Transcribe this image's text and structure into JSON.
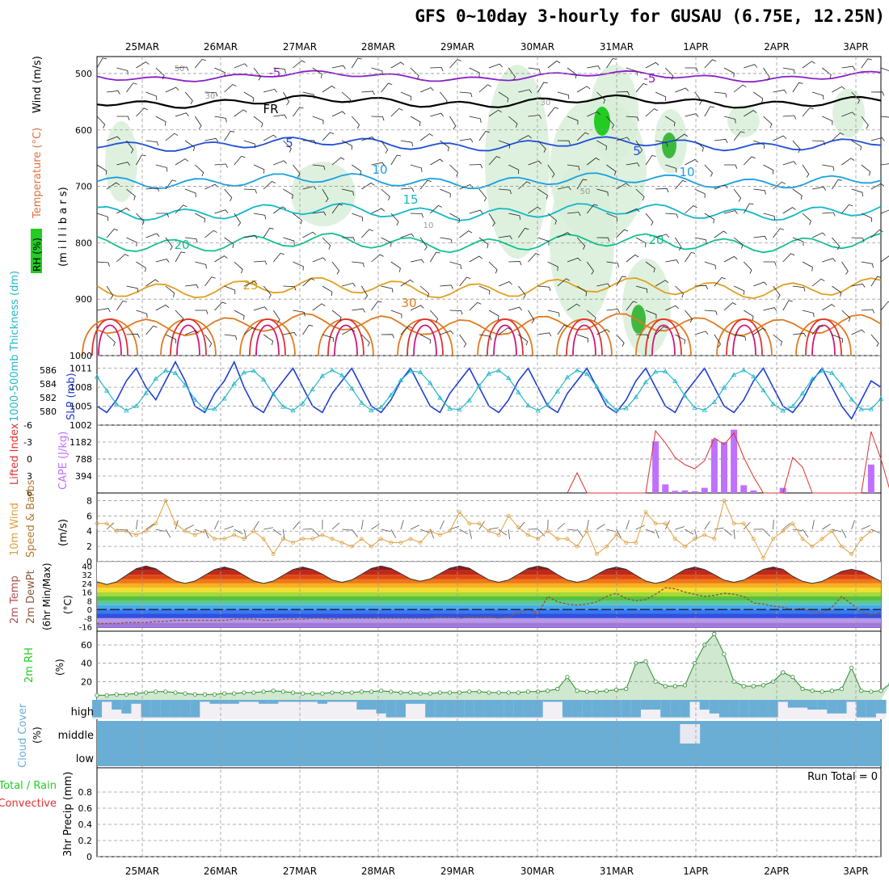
{
  "title": "GFS 0~10day 3-hourly for GUSAU (6.75E, 12.25N)",
  "chart_data": {
    "type": "meteogram",
    "dates": [
      "25MAR",
      "26MAR",
      "27MAR",
      "28MAR",
      "29MAR",
      "30MAR",
      "31MAR",
      "1APR",
      "2APR",
      "3APR"
    ],
    "colors": {
      "rh_green": "#22cc22",
      "wind_purple": "#8a1fc8",
      "fr_line": "#000000",
      "temp_blue": "#1f4fd8",
      "temp_lightblue": "#1aa0e0",
      "temp_cyan": "#12b8c8",
      "temp_teal": "#12c090",
      "temp_orange": "#e0a020",
      "temp_darkorange": "#e07a20",
      "temp_red": "#e03030",
      "temp_magenta": "#d0187a",
      "slp_line": "#1f3fd0",
      "thickness_line": "#22b8c8",
      "lifted_line": "#e03030",
      "cape_bar": "#c070ff",
      "wind_speed_line": "#e0a040",
      "cloud_blue": "#6aaed6",
      "precip_label": "#e03030",
      "rh2m_line": "#2a8a2a"
    },
    "panels": [
      {
        "id": "upper-air",
        "axis_label_parts": [
          "RH (%)",
          "Temperature (°C)",
          "Wind (m/s)"
        ],
        "y_label": "(m i l l i b a r s)",
        "y_ticks": [
          "500",
          "600",
          "700",
          "800",
          "900",
          "1000"
        ],
        "contour_labels": [
          "-5",
          "FR",
          "5",
          "10",
          "15",
          "20",
          "25",
          "30",
          "50",
          "30",
          "30",
          "10",
          "-5",
          "5",
          "10",
          "20",
          "50"
        ],
        "temp_contours_c": [
          -5,
          0,
          5,
          10,
          15,
          20,
          25,
          30
        ],
        "contour_pressure_mb": [
          505,
          550,
          625,
          690,
          745,
          800,
          880,
          945
        ]
      },
      {
        "id": "slp-thickness",
        "axis_label_left": "1000-500mb Thickness (dm)",
        "axis_label_right": "SLP (mb)",
        "thickness_ticks": [
          "586",
          "584",
          "582",
          "580"
        ],
        "slp_ticks": [
          "1011",
          "1008",
          "1005",
          "1002"
        ],
        "slp_range": [
          1002,
          1013
        ],
        "slp_values": [
          1005,
          1004,
          1006,
          1009,
          1011,
          1008,
          1006,
          1009,
          1012,
          1009,
          1005,
          1004,
          1007,
          1009,
          1012,
          1008,
          1005,
          1004,
          1007,
          1009,
          1011,
          1008,
          1005,
          1004,
          1007,
          1009,
          1011,
          1008,
          1005,
          1004,
          1006,
          1009,
          1011,
          1008,
          1005,
          1004,
          1007,
          1009,
          1011,
          1008,
          1005,
          1004,
          1006,
          1009,
          1011,
          1008,
          1005,
          1004,
          1007,
          1009,
          1011,
          1008,
          1005,
          1004,
          1006,
          1009,
          1011,
          1008,
          1005,
          1004,
          1007,
          1009,
          1011,
          1008,
          1005,
          1004,
          1006,
          1009,
          1011,
          1008,
          1005,
          1004,
          1006,
          1009,
          1011,
          1008,
          1005,
          1003,
          1006,
          1009,
          1008
        ]
      },
      {
        "id": "lifted-cape",
        "axis_label_left": "Lifted Index",
        "axis_label_right": "CAPE (J/kg)",
        "li_ticks": [
          "-6",
          "-3",
          "0",
          "3",
          "6"
        ],
        "cape_ticks": [
          "1182",
          "788",
          "394"
        ],
        "cape_range": [
          0,
          1576
        ],
        "cape_bars": [
          {
            "x": 57,
            "v": 1200
          },
          {
            "x": 58,
            "v": 200
          },
          {
            "x": 59,
            "v": 50
          },
          {
            "x": 60,
            "v": 60
          },
          {
            "x": 61,
            "v": 40
          },
          {
            "x": 62,
            "v": 120
          },
          {
            "x": 63,
            "v": 1250
          },
          {
            "x": 64,
            "v": 1180
          },
          {
            "x": 65,
            "v": 1470
          },
          {
            "x": 66,
            "v": 180
          },
          {
            "x": 67,
            "v": 60
          },
          {
            "x": 70,
            "v": 120
          },
          {
            "x": 79,
            "v": 660
          }
        ]
      },
      {
        "id": "wind10m",
        "axis_label_left": "10m Wind",
        "axis_label_mid": "Speed & Barbs",
        "unit": "(m/s)",
        "ticks": [
          "8",
          "6",
          "4",
          "2",
          "0"
        ],
        "range": [
          0,
          9
        ],
        "speed_values": [
          5,
          5,
          4,
          4,
          3.5,
          4,
          5,
          8,
          5,
          4,
          3.5,
          4,
          3,
          3,
          3.5,
          3,
          4,
          3,
          1,
          3,
          2.5,
          3,
          3,
          3.5,
          3,
          2.5,
          2,
          3,
          2,
          3,
          2.5,
          2.5,
          3,
          2.5,
          4,
          3.5,
          4,
          6.5,
          5,
          5,
          4,
          3.5,
          6,
          4.5,
          3.5,
          3,
          4,
          3,
          3,
          2,
          4,
          1,
          2,
          3.5,
          2.5,
          2.5,
          6.5,
          5,
          5,
          3,
          2,
          3,
          3.5,
          3,
          8,
          5,
          5,
          3,
          0.5,
          3,
          4,
          5,
          3,
          2,
          3,
          4,
          2,
          1,
          3,
          4
        ]
      },
      {
        "id": "temp2m",
        "axis_label_parts": [
          "2m Temp",
          "2m DewPt",
          "(6hr Min/Max)"
        ],
        "unit": "(°C)",
        "ticks": [
          "40",
          "32",
          "24",
          "16",
          "8",
          "0",
          "-8",
          "-16"
        ],
        "range": [
          -20,
          44
        ],
        "temp_peaks_c": [
          40,
          39,
          39,
          40,
          40,
          40,
          39,
          39,
          39,
          37
        ],
        "temp_troughs_c": [
          23,
          24,
          24,
          25,
          26,
          25,
          25,
          24,
          25,
          24
        ],
        "dewpt_c": [
          -13,
          -13,
          -13,
          -12,
          -12,
          -12,
          -11,
          -11,
          -10,
          -10,
          -10,
          -10,
          -10,
          -10,
          -9,
          -9,
          -9,
          -10,
          -10,
          -9,
          -9,
          -9,
          -8,
          -8,
          -9,
          -8,
          -8,
          -8,
          -8,
          -8,
          -8,
          -8,
          -8,
          -8,
          -8,
          -7,
          -7,
          -8,
          -7,
          -7,
          -7,
          -8,
          -7,
          -3,
          0,
          -4,
          12,
          7,
          5,
          4,
          5,
          7,
          12,
          15,
          10,
          8,
          9,
          14,
          20,
          19,
          16,
          14,
          12,
          13,
          15,
          14,
          12,
          6,
          5,
          3,
          2,
          0,
          1,
          -2,
          -3,
          2,
          12,
          5,
          -2,
          -5,
          -3
        ]
      },
      {
        "id": "rh2m",
        "axis_label": "2m RH",
        "unit": "(%)",
        "ticks": [
          "60",
          "40",
          "20"
        ],
        "range": [
          0,
          75
        ],
        "values": [
          5,
          5,
          6,
          6,
          7,
          8,
          9,
          9,
          8,
          7,
          6,
          6,
          6,
          7,
          7,
          8,
          8,
          9,
          10,
          9,
          8,
          7,
          7,
          7,
          8,
          8,
          8,
          9,
          9,
          10,
          9,
          8,
          8,
          7,
          7,
          8,
          8,
          8,
          9,
          9,
          8,
          8,
          8,
          8,
          9,
          9,
          10,
          12,
          25,
          10,
          9,
          9,
          10,
          11,
          12,
          40,
          42,
          20,
          15,
          15,
          16,
          40,
          60,
          72,
          50,
          20,
          15,
          15,
          16,
          20,
          30,
          25,
          12,
          10,
          9,
          10,
          12,
          35,
          10,
          9,
          10,
          18
        ]
      },
      {
        "id": "cloud",
        "axis_label": "Cloud Cover",
        "unit": "(%)",
        "level_labels": [
          "high",
          "middle",
          "low"
        ],
        "high_cover": [
          0.1,
          0.9,
          0.5,
          0.3,
          0.8,
          0.1,
          0.1,
          0.1,
          0.1,
          0.1,
          0.1,
          0.9,
          0.8,
          0.8,
          0.8,
          0.9,
          0.9,
          0.8,
          0.8,
          0.9,
          0.9,
          0.9,
          0.9,
          0.8,
          0.9,
          0.9,
          0.9,
          0.5,
          0.5,
          0.3,
          0.1,
          0.1,
          0.8,
          0.8,
          0.1,
          0.1,
          0.1,
          0.1,
          0.1,
          0.1,
          0.1,
          0.1,
          0.1,
          0.1,
          0.1,
          0.1,
          0.9,
          0.9,
          0.1,
          0.1,
          0.1,
          0.1,
          0.1,
          0.1,
          0.1,
          0.1,
          0.5,
          0.5,
          0.1,
          0.1,
          0.1,
          0.9,
          0.5,
          0.3,
          0.1,
          0.1,
          0.1,
          0.1,
          0.1,
          0.1,
          0.9,
          0.6,
          0.6,
          0.5,
          0.5,
          0.3,
          0.3,
          0.9,
          0.1,
          0.1,
          0.3,
          0.8,
          0.1,
          0.1
        ],
        "middle_cover": [
          0.9,
          0.9,
          0.9,
          0.9,
          0.9,
          0.9,
          0.9,
          0.9,
          0.9,
          0.9,
          0.9,
          0.9,
          0.9,
          0.9,
          0.9,
          0.9,
          0.9,
          0.9,
          0.9,
          0.9,
          0.9,
          0.9,
          0.9,
          0.9,
          0.9,
          0.9,
          0.9,
          0.9,
          0.9,
          0.9,
          0.9,
          0.9,
          0.9,
          0.9,
          0.9,
          0.9,
          0.9,
          0.9,
          0.9,
          0.9,
          0.9,
          0.9,
          0.9,
          0.9,
          0.9,
          0.9,
          0.9,
          0.9,
          0.9,
          0.9,
          0.9,
          0.9,
          0.9,
          0.9,
          0.9,
          0.9,
          0.9,
          0.9,
          0.9,
          0.9,
          0.2,
          0.2,
          0.9,
          0.9,
          0.9,
          0.9,
          0.9,
          0.9,
          0.9,
          0.9,
          0.9,
          0.9,
          0.9,
          0.9,
          0.9,
          0.9,
          0.9,
          0.9,
          0.9,
          0.9,
          0.9,
          0.9
        ]
      },
      {
        "id": "precip",
        "axis_label_parts": [
          "Total / Rain",
          "Convective",
          "3hr Precip (mm)"
        ],
        "ticks": [
          "0.8",
          "0.6",
          "0.4",
          "0.2",
          "0"
        ],
        "range": [
          0,
          1
        ],
        "run_total": "Run Total = 0"
      }
    ]
  }
}
